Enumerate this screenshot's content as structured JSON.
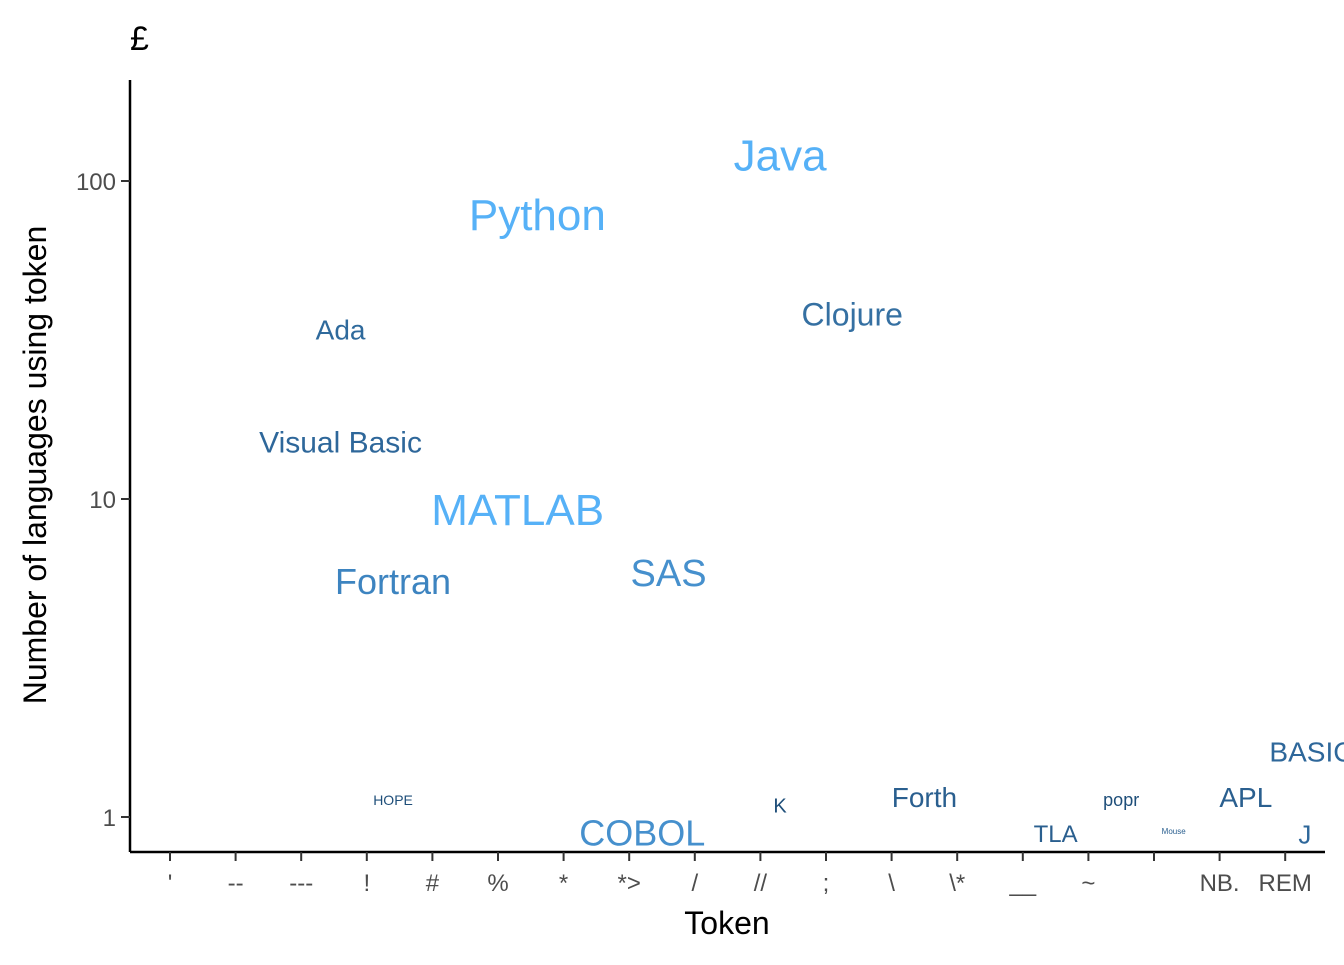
{
  "chart_data": {
    "type": "scatter",
    "title": "£",
    "xlabel": "Token",
    "ylabel": "Number of languages using token",
    "y_scale": "log10",
    "ylim": [
      0.8,
      210
    ],
    "y_ticks": [
      {
        "value": 1,
        "label": "1"
      },
      {
        "value": 10,
        "label": "10"
      },
      {
        "value": 100,
        "label": "100"
      }
    ],
    "categories": [
      "'",
      "--",
      "---",
      "!",
      "#",
      "%",
      "*",
      "*>",
      "/",
      "//",
      ";",
      "\\",
      "\\*",
      "__",
      "~",
      "",
      "NB.",
      "REM"
    ],
    "grid": false,
    "legend": "none",
    "color_scale": {
      "low": "#1e4e79",
      "high": "#56b1f7"
    },
    "points": [
      {
        "label": "Java",
        "x": 9.3,
        "y": 120,
        "size": 44,
        "color": "#56b1f7"
      },
      {
        "label": "Python",
        "x": 5.6,
        "y": 78,
        "size": 44,
        "color": "#56b1f7"
      },
      {
        "label": "Ada",
        "x": 2.6,
        "y": 34,
        "size": 28,
        "color": "#2f6a9c"
      },
      {
        "label": "Clojure",
        "x": 10.4,
        "y": 38,
        "size": 32,
        "color": "#3570a2"
      },
      {
        "label": "Visual Basic",
        "x": 2.6,
        "y": 15,
        "size": 30,
        "color": "#2e679a"
      },
      {
        "label": "MATLAB",
        "x": 5.3,
        "y": 9.2,
        "size": 44,
        "color": "#56b1f7"
      },
      {
        "label": "Fortran",
        "x": 3.4,
        "y": 5.5,
        "size": 36,
        "color": "#3d84c0"
      },
      {
        "label": "SAS",
        "x": 7.6,
        "y": 5.8,
        "size": 38,
        "color": "#4690cd"
      },
      {
        "label": "HOPE",
        "x": 3.4,
        "y": 1.13,
        "size": 14,
        "color": "#1e4e79"
      },
      {
        "label": "COBOL",
        "x": 7.2,
        "y": 0.89,
        "size": 36,
        "color": "#4690cd"
      },
      {
        "label": "K",
        "x": 9.3,
        "y": 1.08,
        "size": 20,
        "color": "#1e4e79"
      },
      {
        "label": "Forth",
        "x": 11.5,
        "y": 1.15,
        "size": 28,
        "color": "#2a5f8f"
      },
      {
        "label": "TLA",
        "x": 13.5,
        "y": 0.88,
        "size": 24,
        "color": "#2a5f8f"
      },
      {
        "label": "popr",
        "x": 14.5,
        "y": 1.13,
        "size": 18,
        "color": "#1e4e79"
      },
      {
        "label": "Mouse",
        "x": 15.3,
        "y": 0.9,
        "size": 8,
        "color": "#2a5f8f"
      },
      {
        "label": "APL",
        "x": 16.4,
        "y": 1.15,
        "size": 28,
        "color": "#2a5f8f"
      },
      {
        "label": "BASIC",
        "x": 17.4,
        "y": 1.6,
        "size": 28,
        "color": "#2e679a"
      },
      {
        "label": "J",
        "x": 17.3,
        "y": 0.88,
        "size": 26,
        "color": "#2e679a"
      }
    ]
  }
}
